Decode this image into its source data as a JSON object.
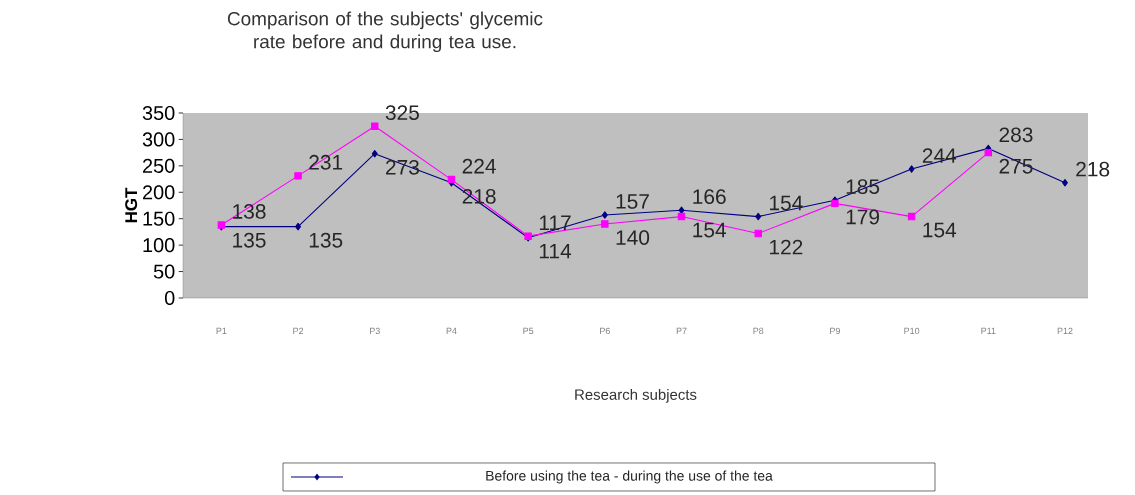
{
  "chart_data": {
    "type": "line",
    "title": "Comparison of the subjects' glycemic rate before and during tea use.",
    "xlabel": "Research subjects",
    "ylabel": "HGT",
    "categories": [
      "P1",
      "P2",
      "P3",
      "P4",
      "P5",
      "P6",
      "P7",
      "P8",
      "P9",
      "P10",
      "P11",
      "P12"
    ],
    "series": [
      {
        "name": "Before using the tea - during the use of the tea",
        "color": "#000080",
        "marker": "diamond",
        "values": [
          135,
          135,
          273,
          218,
          114,
          157,
          166,
          154,
          185,
          244,
          283,
          218
        ]
      },
      {
        "color": "#ff00ff",
        "marker": "square",
        "values": [
          138,
          231,
          325,
          224,
          117,
          140,
          154,
          122,
          179,
          154,
          275,
          null
        ]
      }
    ],
    "ylim": [
      0,
      350
    ],
    "yticks": [
      0,
      50,
      100,
      150,
      200,
      250,
      300,
      350
    ],
    "data_labels": true,
    "legend": "bottom",
    "grid": false
  }
}
